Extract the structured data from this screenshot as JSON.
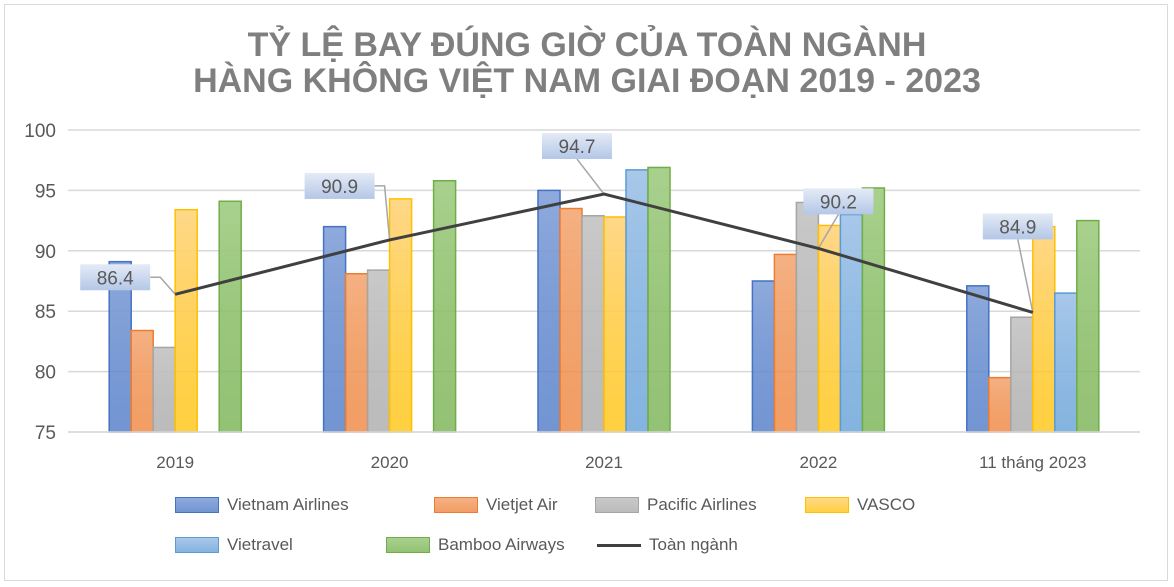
{
  "chart_data": {
    "type": "bar",
    "title": "TỶ LỆ BAY ĐÚNG GIỜ CỦA TOÀN NGÀNH HÀNG KHÔNG VIỆT NAM GIAI ĐOẠN 2019 - 2023",
    "title_lines": [
      "TỶ LỆ BAY ĐÚNG GIỜ CỦA TOÀN NGÀNH",
      "HÀNG KHÔNG VIỆT NAM GIAI ĐOẠN 2019 - 2023"
    ],
    "categories": [
      "2019",
      "2020",
      "2021",
      "2022",
      "11 tháng 2023"
    ],
    "ylim": [
      75,
      100
    ],
    "yticks": [
      "75",
      "80",
      "85",
      "90",
      "95",
      "100"
    ],
    "grid": true,
    "legend_position": "bottom",
    "series": [
      {
        "name": "Vietnam Airlines",
        "kind": "bar",
        "color": "#4472c4",
        "fill": "#8faadc",
        "values": [
          89.1,
          92.0,
          95.0,
          87.5,
          87.1
        ]
      },
      {
        "name": "Vietjet Air",
        "kind": "bar",
        "color": "#ed7d31",
        "fill": "#f4b183",
        "values": [
          83.4,
          88.1,
          93.5,
          89.7,
          79.5
        ]
      },
      {
        "name": "Pacific Airlines",
        "kind": "bar",
        "color": "#a5a5a5",
        "fill": "#c9c9c9",
        "values": [
          82.0,
          88.4,
          92.9,
          94.0,
          84.5
        ]
      },
      {
        "name": "VASCO",
        "kind": "bar",
        "color": "#ffc000",
        "fill": "#ffd88a",
        "values": [
          93.4,
          94.3,
          92.8,
          92.1,
          92.0
        ]
      },
      {
        "name": "Vietravel",
        "kind": "bar",
        "color": "#5b9bd5",
        "fill": "#a9c8ea",
        "values": [
          null,
          null,
          96.7,
          93.0,
          86.5
        ]
      },
      {
        "name": "Bamboo Airways",
        "kind": "bar",
        "color": "#70ad47",
        "fill": "#a9d18e",
        "values": [
          94.1,
          95.8,
          96.9,
          95.2,
          92.5
        ]
      },
      {
        "name": "Toàn ngành",
        "kind": "line",
        "color": "#404040",
        "values": [
          86.4,
          90.9,
          94.7,
          90.2,
          84.9
        ]
      }
    ],
    "data_labels": [
      "86.4",
      "90.9",
      "94.7",
      "90.2",
      "84.9"
    ]
  }
}
